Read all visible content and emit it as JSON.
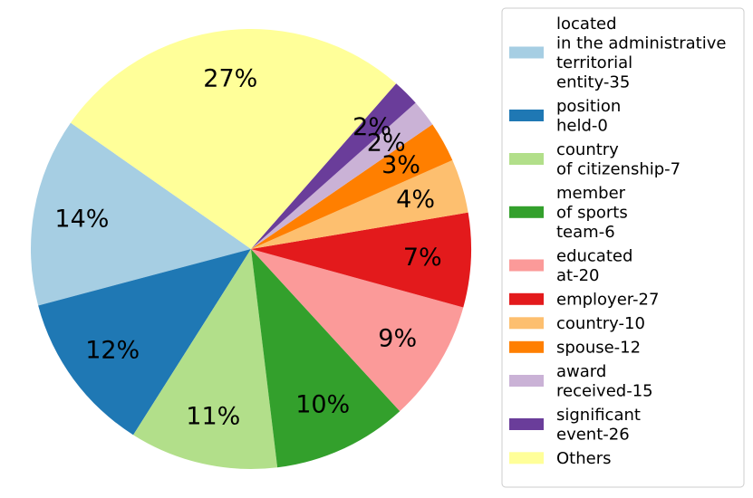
{
  "chart_data": {
    "type": "pie",
    "slices": [
      {
        "label": "located\nin the administrative\nterritorial\nentity-35",
        "value": 14,
        "color": "#a6cee3"
      },
      {
        "label": "position\nheld-0",
        "value": 12,
        "color": "#1f78b4"
      },
      {
        "label": "country\nof citizenship-7",
        "value": 11,
        "color": "#b2df8a"
      },
      {
        "label": "member\nof sports\nteam-6",
        "value": 10,
        "color": "#33a02c"
      },
      {
        "label": "educated\nat-20",
        "value": 9,
        "color": "#fb9a99"
      },
      {
        "label": "employer-27",
        "value": 7,
        "color": "#e31a1c"
      },
      {
        "label": "country-10",
        "value": 4,
        "color": "#fdbf6f"
      },
      {
        "label": "spouse-12",
        "value": 3,
        "color": "#ff7f00"
      },
      {
        "label": "award\nreceived-15",
        "value": 2,
        "color": "#cab2d6"
      },
      {
        "label": "significant\nevent-26",
        "value": 2,
        "color": "#6a3d9a"
      },
      {
        "label": "Others",
        "value": 27,
        "color": "#ffff99"
      }
    ],
    "pct_labels": [
      "14%",
      "12%",
      "11%",
      "10%",
      "9%",
      "7%",
      "4%",
      "3%",
      "2%",
      "2%",
      "27%"
    ],
    "start_angle_deg": 145,
    "direction": "counterclockwise",
    "legend_position": "right"
  }
}
